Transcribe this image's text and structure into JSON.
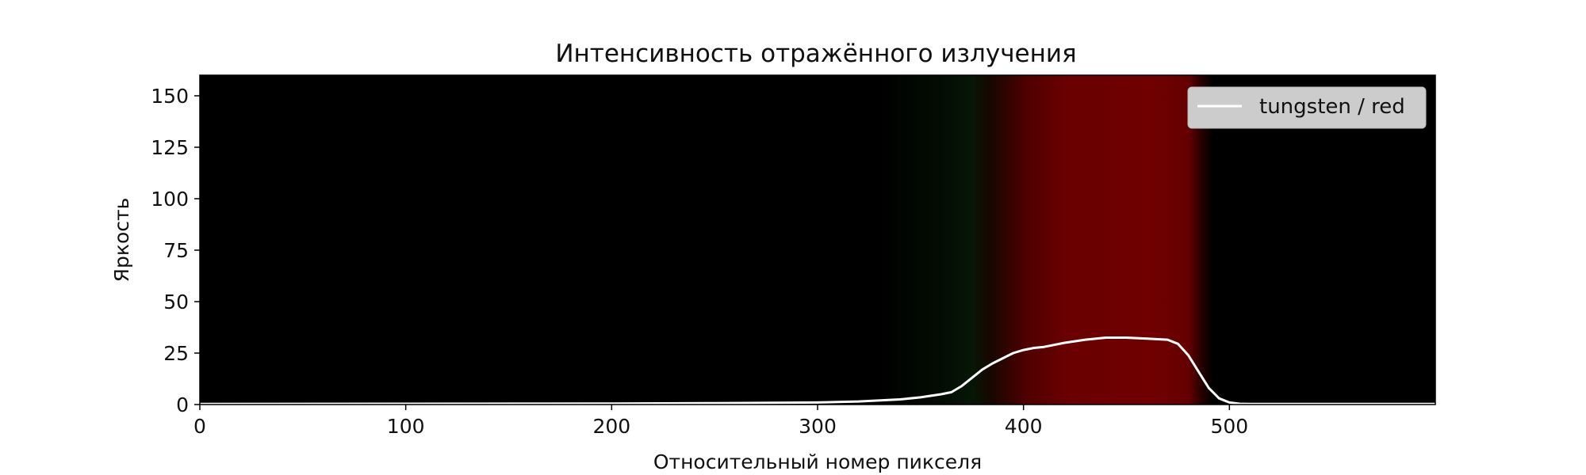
{
  "chart_data": {
    "type": "line",
    "title": "Интенсивность отражённого излучения",
    "xlabel": "Относительный номер пикселя",
    "ylabel": "Яркость",
    "xlim": [
      0,
      600
    ],
    "ylim": [
      0,
      160
    ],
    "xticks": [
      0,
      100,
      200,
      300,
      400,
      500
    ],
    "yticks": [
      0,
      25,
      50,
      75,
      100,
      125,
      150
    ],
    "grid": false,
    "legend_position": "top-right",
    "background": "spectrum image (black, green-tinted near 340–380, dark red band ~380–485)",
    "colors": {
      "line": "#ffffff",
      "band": "#6e0000",
      "background": "#000000"
    },
    "series": [
      {
        "name": "tungsten / red",
        "x": [
          0,
          100,
          200,
          250,
          300,
          320,
          340,
          350,
          360,
          365,
          370,
          375,
          380,
          385,
          390,
          395,
          400,
          405,
          410,
          420,
          430,
          440,
          450,
          460,
          470,
          475,
          480,
          485,
          490,
          495,
          500,
          505,
          510,
          600
        ],
        "y": [
          0.3,
          0.4,
          0.5,
          0.7,
          1.0,
          1.5,
          2.5,
          3.5,
          5.0,
          6.0,
          9.0,
          13.0,
          17.0,
          20.0,
          22.5,
          25.0,
          26.5,
          27.5,
          28.0,
          30.0,
          31.5,
          32.5,
          32.5,
          32.0,
          31.5,
          29.5,
          24.0,
          16.0,
          8.0,
          3.0,
          1.0,
          0.4,
          0.3,
          0.3
        ]
      }
    ]
  }
}
